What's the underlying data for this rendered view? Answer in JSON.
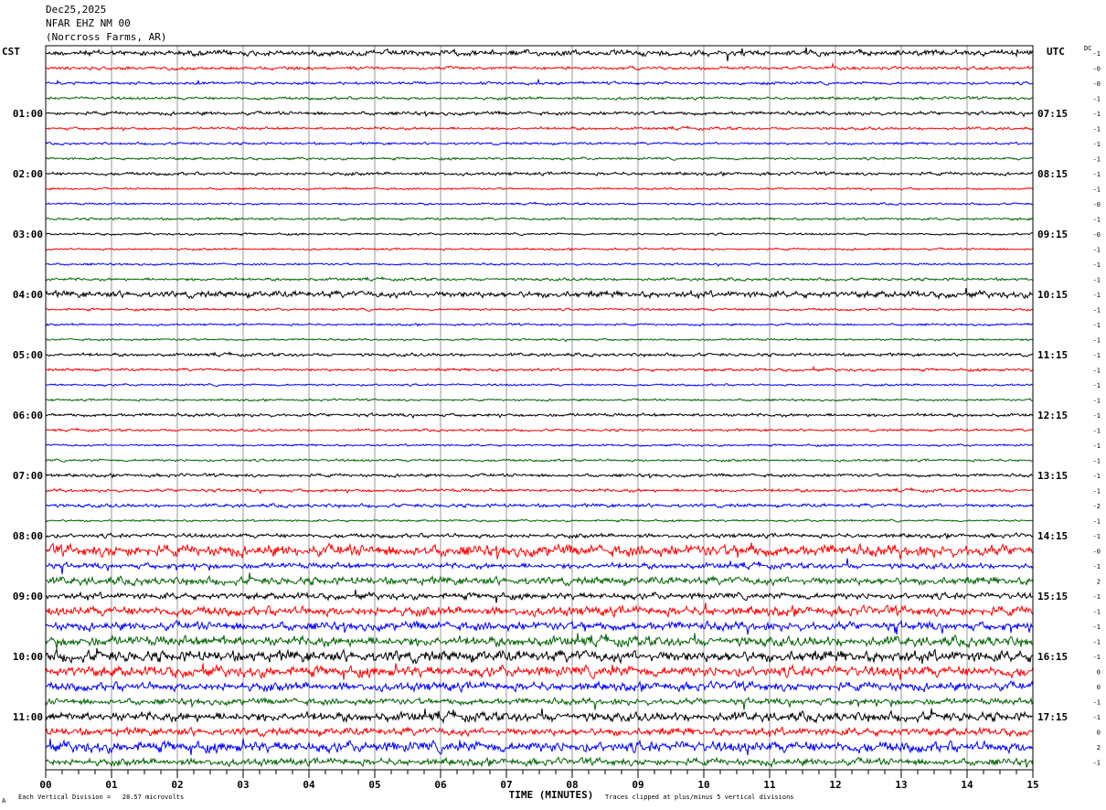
{
  "header": {
    "date": "Dec25,2025",
    "station": "NFAR EHZ NM 00",
    "location": "(Norcross Farms, AR)"
  },
  "axes": {
    "left_tz": "CST",
    "right_tz": "UTC",
    "dc_label": "DC",
    "xlabel": "TIME (MINUTES)"
  },
  "footer": {
    "scale_note": "Each Vertical Division =   28.57 microvolts",
    "clip_note": "Traces clipped at plus/minus 5 vertical divisions",
    "corner_mark": "A"
  },
  "chart_data": {
    "type": "line",
    "title": "NFAR EHZ NM 00",
    "xlabel": "TIME (MINUTES)",
    "xlim": [
      0,
      15
    ],
    "x_ticks": [
      "00",
      "01",
      "02",
      "03",
      "04",
      "05",
      "06",
      "07",
      "08",
      "09",
      "10",
      "11",
      "12",
      "13",
      "14",
      "15"
    ],
    "left_time_labels": [
      "01:00",
      "02:00",
      "03:00",
      "04:00",
      "05:00",
      "06:00",
      "07:00",
      "08:00",
      "09:00",
      "10:00",
      "11:00"
    ],
    "right_time_labels": [
      "07:15",
      "08:15",
      "09:15",
      "10:15",
      "11:15",
      "12:15",
      "13:15",
      "14:15",
      "15:15",
      "16:15",
      "17:15"
    ],
    "trace_colors": [
      "#000000",
      "#ff0000",
      "#0000ff",
      "#006400"
    ],
    "dc_offsets": [
      "-1",
      "-0",
      "-0",
      "-1",
      "-1",
      "-1",
      "-1",
      "-1",
      "-1",
      "-1",
      "-0",
      "-1",
      "-0",
      "-1",
      "-1",
      "-1",
      "-1",
      "-1",
      "-1",
      "-1",
      "-1",
      "-1",
      "-1",
      "-1",
      "-1",
      "-1",
      "-1",
      "-1",
      "-1",
      "-1",
      "-2",
      "-1",
      "-1",
      "-0",
      "-1",
      "2",
      "-1",
      "-1",
      "-1",
      "-1",
      "-1",
      "0",
      "0",
      "-1",
      "-1",
      "0",
      "2",
      "-1"
    ],
    "trace_activity": [
      1.6,
      0.9,
      0.8,
      0.8,
      1.0,
      0.8,
      0.7,
      0.7,
      0.9,
      0.6,
      0.6,
      0.7,
      0.6,
      0.6,
      0.6,
      0.8,
      1.8,
      0.7,
      0.6,
      0.6,
      0.9,
      0.8,
      0.6,
      0.6,
      0.9,
      0.7,
      0.6,
      0.7,
      0.9,
      0.9,
      1.0,
      0.6,
      1.2,
      3.2,
      1.6,
      2.2,
      1.8,
      2.6,
      2.4,
      2.8,
      3.2,
      3.0,
      2.4,
      1.8,
      2.6,
      2.2,
      3.0,
      2.0
    ],
    "grid": true
  }
}
